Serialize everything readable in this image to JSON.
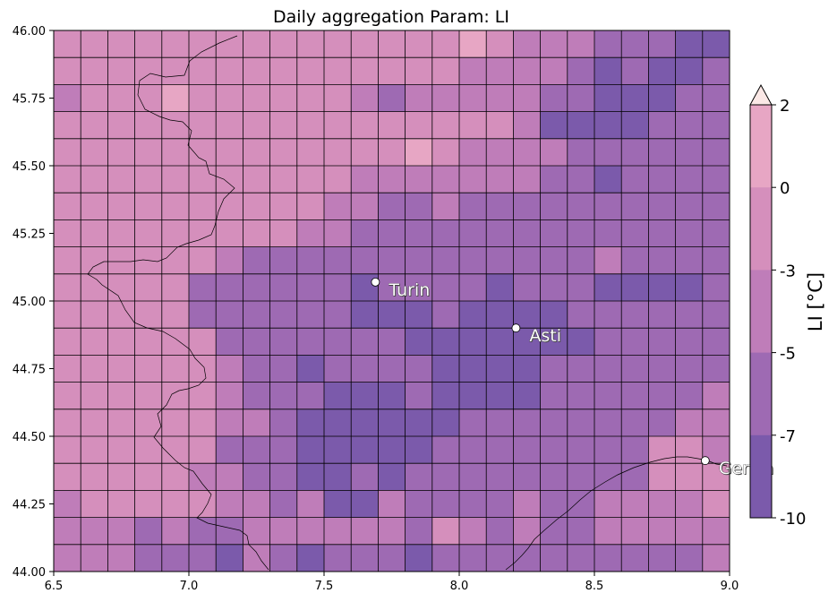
{
  "title": "Daily aggregation Param: LI",
  "map": {
    "lon_range": [
      6.5,
      9.0
    ],
    "lat_range": [
      44.0,
      46.0
    ],
    "x_ticks": [
      "6.5",
      "7.0",
      "7.5",
      "8.0",
      "8.5",
      "9.0"
    ],
    "y_ticks": [
      "44.00",
      "44.25",
      "44.50",
      "44.75",
      "45.00",
      "45.25",
      "45.50",
      "45.75",
      "46.00"
    ],
    "grid": {
      "columns": 25,
      "rows": 20,
      "cell_size_deg": [
        0.1,
        0.1
      ],
      "level_colors": {
        "-10": "#5e3590",
        "-7": "#7b5aab",
        "-5": "#9e6ab3",
        "-3": "#bf7db9",
        "0": "#d58fbc",
        "2": "#e7a6c4"
      },
      "rows_li_top_to_bottom": [
        [
          0,
          0,
          0,
          0,
          0,
          0,
          0,
          0,
          0,
          0,
          0,
          0,
          0,
          0,
          0,
          2,
          0,
          -3,
          -3,
          -3,
          -5,
          -5,
          -5,
          -7,
          -7
        ],
        [
          0,
          0,
          0,
          0,
          0,
          0,
          0,
          0,
          0,
          0,
          0,
          0,
          0,
          0,
          0,
          -3,
          -3,
          -3,
          -3,
          -5,
          -7,
          -5,
          -7,
          -7,
          -5
        ],
        [
          -3,
          0,
          0,
          0,
          2,
          0,
          0,
          0,
          0,
          0,
          0,
          -3,
          -5,
          -3,
          -3,
          -3,
          -3,
          -3,
          -5,
          -5,
          -7,
          -7,
          -7,
          -5,
          -5
        ],
        [
          0,
          0,
          0,
          0,
          0,
          0,
          0,
          0,
          0,
          0,
          0,
          0,
          0,
          0,
          0,
          0,
          0,
          -3,
          -7,
          -7,
          -7,
          -7,
          -5,
          -5,
          -5
        ],
        [
          0,
          0,
          0,
          0,
          0,
          0,
          0,
          0,
          0,
          0,
          0,
          0,
          0,
          2,
          0,
          -3,
          -3,
          -3,
          -3,
          -5,
          -5,
          -5,
          -5,
          -5,
          -5
        ],
        [
          0,
          0,
          0,
          0,
          0,
          0,
          0,
          0,
          0,
          0,
          0,
          -3,
          -3,
          -3,
          -3,
          -3,
          -3,
          -3,
          -5,
          -5,
          -7,
          -5,
          -5,
          -5,
          -5
        ],
        [
          0,
          0,
          0,
          0,
          0,
          0,
          0,
          0,
          0,
          0,
          -3,
          -3,
          -5,
          -5,
          -3,
          -5,
          -5,
          -5,
          -5,
          -5,
          -5,
          -5,
          -5,
          -5,
          -5
        ],
        [
          0,
          0,
          0,
          0,
          0,
          0,
          0,
          0,
          0,
          -3,
          -3,
          -5,
          -5,
          -5,
          -5,
          -5,
          -5,
          -5,
          -5,
          -5,
          -5,
          -5,
          -5,
          -5,
          -5
        ],
        [
          0,
          0,
          0,
          0,
          0,
          0,
          -3,
          -5,
          -5,
          -5,
          -5,
          -5,
          -5,
          -5,
          -5,
          -5,
          -5,
          -5,
          -5,
          -5,
          -3,
          -5,
          -5,
          -5,
          -5
        ],
        [
          0,
          0,
          0,
          0,
          0,
          -5,
          -5,
          -5,
          -5,
          -5,
          -5,
          -7,
          -5,
          -5,
          -5,
          -5,
          -7,
          -5,
          -5,
          -5,
          -7,
          -7,
          -7,
          -7,
          -5
        ],
        [
          0,
          0,
          0,
          0,
          0,
          -5,
          -5,
          -5,
          -5,
          -5,
          -5,
          -7,
          -7,
          -7,
          -5,
          -7,
          -7,
          -7,
          -7,
          -5,
          -5,
          -5,
          -5,
          -5,
          -5
        ],
        [
          0,
          0,
          0,
          0,
          0,
          0,
          -5,
          -5,
          -5,
          -5,
          -5,
          -5,
          -5,
          -7,
          -7,
          -7,
          -7,
          -7,
          -7,
          -7,
          -5,
          -5,
          -5,
          -5,
          -5
        ],
        [
          0,
          0,
          0,
          0,
          0,
          0,
          -3,
          -5,
          -5,
          -7,
          -5,
          -5,
          -5,
          -5,
          -7,
          -7,
          -7,
          -7,
          -5,
          -5,
          -5,
          -5,
          -5,
          -5,
          -5
        ],
        [
          0,
          0,
          0,
          0,
          0,
          0,
          -3,
          -5,
          -5,
          -5,
          -7,
          -7,
          -7,
          -5,
          -7,
          -7,
          -7,
          -7,
          -5,
          -5,
          -5,
          -5,
          -5,
          -5,
          -3
        ],
        [
          0,
          0,
          0,
          0,
          0,
          0,
          -3,
          -3,
          -5,
          -7,
          -7,
          -7,
          -7,
          -7,
          -7,
          -5,
          -5,
          -5,
          -5,
          -5,
          -5,
          -5,
          -5,
          -3,
          -3
        ],
        [
          0,
          0,
          0,
          0,
          0,
          0,
          -5,
          -5,
          -5,
          -7,
          -7,
          -7,
          -7,
          -7,
          -5,
          -5,
          -5,
          -5,
          -5,
          -5,
          -5,
          -5,
          0,
          0,
          -3
        ],
        [
          0,
          0,
          0,
          0,
          0,
          -3,
          -3,
          -5,
          -5,
          -7,
          -7,
          -5,
          -7,
          -5,
          -5,
          -5,
          -5,
          -5,
          -5,
          -5,
          -5,
          -5,
          0,
          0,
          0
        ],
        [
          -3,
          0,
          0,
          0,
          0,
          0,
          -3,
          -3,
          -5,
          -3,
          -7,
          -7,
          -3,
          -5,
          -5,
          -5,
          -5,
          -3,
          -5,
          -5,
          -3,
          -3,
          -3,
          -3,
          0
        ],
        [
          -3,
          -3,
          -3,
          -5,
          -3,
          -5,
          -5,
          -3,
          -3,
          -3,
          -3,
          -3,
          -3,
          -5,
          0,
          -3,
          -5,
          -3,
          -5,
          -5,
          -3,
          -3,
          -3,
          -3,
          -3
        ],
        [
          -3,
          -3,
          -3,
          -5,
          -5,
          -5,
          -7,
          -3,
          -5,
          -7,
          -5,
          -5,
          -5,
          -7,
          -5,
          -5,
          -5,
          -5,
          -5,
          -5,
          -5,
          -5,
          -5,
          -5,
          -3
        ]
      ]
    },
    "cities": [
      {
        "name": "Turin",
        "lon": 7.69,
        "lat": 45.07
      },
      {
        "name": "Asti",
        "lon": 8.21,
        "lat": 44.9
      },
      {
        "name": "Genoa",
        "lon": 8.91,
        "lat": 44.41
      }
    ]
  },
  "colorbar": {
    "label": "LI [°C]",
    "ticks": [
      "2",
      "0",
      "-3",
      "-5",
      "-7",
      "-10"
    ],
    "extend": "max",
    "extend_color": "#fbe8e6"
  }
}
